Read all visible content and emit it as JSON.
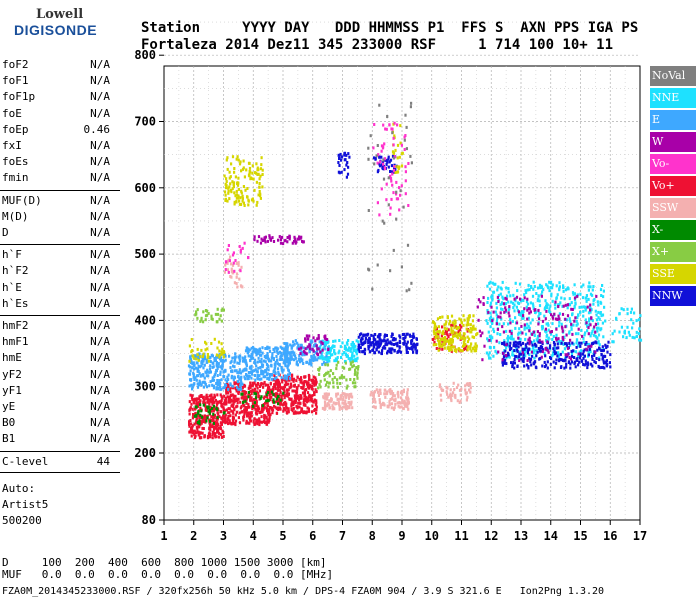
{
  "logo": {
    "line1": "Lowell",
    "line2": "DIGISONDE"
  },
  "header": {
    "row1": "Station     YYYY DAY   DDD HHMMSS P1  FFS S  AXN PPS IGA PS",
    "row2": "Fortaleza 2014 Dez11 345 233000 RSF     1 714 100 10+ 11"
  },
  "params": [
    {
      "label": "foF2",
      "value": "N/A"
    },
    {
      "label": "foF1",
      "value": "N/A"
    },
    {
      "label": "foF1p",
      "value": "N/A"
    },
    {
      "label": "foE",
      "value": "N/A"
    },
    {
      "label": "foEp",
      "value": "0.46"
    },
    {
      "label": "fxI",
      "value": "N/A"
    },
    {
      "label": "foEs",
      "value": "N/A"
    },
    {
      "label": "fmin",
      "value": "N/A"
    },
    {
      "label": "MUF(D)",
      "value": "N/A"
    },
    {
      "label": "M(D)",
      "value": "N/A"
    },
    {
      "label": "D",
      "value": "N/A"
    },
    {
      "label": "h`F",
      "value": "N/A"
    },
    {
      "label": "h`F2",
      "value": "N/A"
    },
    {
      "label": "h`E",
      "value": "N/A"
    },
    {
      "label": "h`Es",
      "value": "N/A"
    },
    {
      "label": "hmF2",
      "value": "N/A"
    },
    {
      "label": "hmF1",
      "value": "N/A"
    },
    {
      "label": "hmE",
      "value": "N/A"
    },
    {
      "label": "yF2",
      "value": "N/A"
    },
    {
      "label": "yF1",
      "value": "N/A"
    },
    {
      "label": "yE",
      "value": "N/A"
    },
    {
      "label": "B0",
      "value": "N/A"
    },
    {
      "label": "B1",
      "value": "N/A"
    },
    {
      "label": "C-level",
      "value": "44"
    }
  ],
  "auto": {
    "line1": "Auto:",
    "line2": "Artist5",
    "line3": "500200"
  },
  "legend": [
    {
      "label": "NoVal",
      "color": "#7f7f7f"
    },
    {
      "label": "NNE",
      "color": "#1ee1ff"
    },
    {
      "label": "E",
      "color": "#3ea8ff"
    },
    {
      "label": "W",
      "color": "#a800a8"
    },
    {
      "label": "Vo-",
      "color": "#ff33cc"
    },
    {
      "label": "Vo+",
      "color": "#ee1133"
    },
    {
      "label": "SSW",
      "color": "#f4b0b0"
    },
    {
      "label": "X-",
      "color": "#008a00"
    },
    {
      "label": "X+",
      "color": "#88cc44"
    },
    {
      "label": "SSE",
      "color": "#d6d600"
    },
    {
      "label": "NNW",
      "color": "#1010d8"
    }
  ],
  "footer": {
    "line1": "D     100  200  400  600  800 1000 1500 3000 [km]",
    "line2": "MUF   0.0  0.0  0.0  0.0  0.0  0.0  0.0  0.0 [MHz]",
    "filename": "FZA0M_2014345233000.RSF / 320fx256h 50 kHz 5.0 km / DPS-4 FZA0M 904 / 3.9 S 321.6 E   Ion2Png 1.3.20"
  },
  "chart_data": {
    "type": "scatter",
    "xlabel": "",
    "ylabel": "",
    "xlim": [
      1,
      17
    ],
    "ylim": [
      80,
      900
    ],
    "x_ticks": [
      1,
      2,
      3,
      4,
      5,
      6,
      7,
      8,
      9,
      10,
      11,
      12,
      13,
      14,
      15,
      16,
      17
    ],
    "y_ticks": [
      80,
      200,
      300,
      400,
      500,
      600,
      700,
      800,
      900
    ],
    "grid": true,
    "legend_position": "right",
    "series": [
      {
        "name": "Vo+",
        "clusters": [
          {
            "x": [
              1.8,
              3.0
            ],
            "y": [
              225,
              290
            ],
            "n": 300
          },
          {
            "x": [
              3.0,
              4.6
            ],
            "y": [
              245,
              310
            ],
            "n": 380
          },
          {
            "x": [
              4.6,
              6.1
            ],
            "y": [
              262,
              320
            ],
            "n": 320
          },
          {
            "x": [
              10.0,
              11.2
            ],
            "y": [
              355,
              395
            ],
            "n": 60
          }
        ]
      },
      {
        "name": "SSW",
        "clusters": [
          {
            "x": [
              6.3,
              7.3
            ],
            "y": [
              268,
              292
            ],
            "n": 90
          },
          {
            "x": [
              7.9,
              9.2
            ],
            "y": [
              268,
              298
            ],
            "n": 110
          },
          {
            "x": [
              10.2,
              11.3
            ],
            "y": [
              278,
              308
            ],
            "n": 50
          },
          {
            "x": [
              3.0,
              3.6
            ],
            "y": [
              450,
              500
            ],
            "n": 30
          }
        ]
      },
      {
        "name": "E",
        "clusters": [
          {
            "x": [
              1.8,
              3.6
            ],
            "y": [
              298,
              352
            ],
            "n": 260
          },
          {
            "x": [
              3.6,
              5.2
            ],
            "y": [
              312,
              362
            ],
            "n": 260
          },
          {
            "x": [
              5.0,
              6.5
            ],
            "y": [
              335,
              372
            ],
            "n": 160
          }
        ]
      },
      {
        "name": "NNE",
        "clusters": [
          {
            "x": [
              6.2,
              7.5
            ],
            "y": [
              340,
              372
            ],
            "n": 120
          },
          {
            "x": [
              11.8,
              15.8
            ],
            "y": [
              345,
              460
            ],
            "n": 520
          },
          {
            "x": [
              16.0,
              17.0
            ],
            "y": [
              370,
              420
            ],
            "n": 40
          }
        ]
      },
      {
        "name": "NNW",
        "clusters": [
          {
            "x": [
              7.5,
              9.5
            ],
            "y": [
              352,
              382
            ],
            "n": 200
          },
          {
            "x": [
              12.3,
              16.0
            ],
            "y": [
              330,
              370
            ],
            "n": 260
          },
          {
            "x": [
              8.0,
              8.8
            ],
            "y": [
              625,
              650
            ],
            "n": 40
          },
          {
            "x": [
              6.8,
              7.2
            ],
            "y": [
              615,
              660
            ],
            "n": 25
          }
        ]
      },
      {
        "name": "SSE",
        "clusters": [
          {
            "x": [
              3.0,
              4.3
            ],
            "y": [
              575,
              650
            ],
            "n": 130
          },
          {
            "x": [
              10.0,
              11.5
            ],
            "y": [
              355,
              410
            ],
            "n": 180
          },
          {
            "x": [
              1.8,
              3.0
            ],
            "y": [
              340,
              375
            ],
            "n": 40
          },
          {
            "x": [
              8.6,
              9.0
            ],
            "y": [
              620,
              700
            ],
            "n": 25
          }
        ]
      },
      {
        "name": "W",
        "clusters": [
          {
            "x": [
              4.0,
              5.7
            ],
            "y": [
              518,
              530
            ],
            "n": 50
          },
          {
            "x": [
              11.5,
              15.5
            ],
            "y": [
              340,
              440
            ],
            "n": 160
          },
          {
            "x": [
              5.5,
              6.5
            ],
            "y": [
              350,
              380
            ],
            "n": 40
          }
        ]
      },
      {
        "name": "X+",
        "clusters": [
          {
            "x": [
              6.1,
              7.5
            ],
            "y": [
              300,
              340
            ],
            "n": 70
          },
          {
            "x": [
              2.0,
              3.0
            ],
            "y": [
              400,
              420
            ],
            "n": 30
          }
        ]
      },
      {
        "name": "X-",
        "clusters": [
          {
            "x": [
              2.0,
              3.0
            ],
            "y": [
              245,
              275
            ],
            "n": 35
          },
          {
            "x": [
              3.5,
              5.0
            ],
            "y": [
              270,
              295
            ],
            "n": 30
          }
        ]
      },
      {
        "name": "Vo-",
        "clusters": [
          {
            "x": [
              8.0,
              9.2
            ],
            "y": [
              560,
              700
            ],
            "n": 60
          },
          {
            "x": [
              3.0,
              3.8
            ],
            "y": [
              470,
              520
            ],
            "n": 20
          }
        ]
      },
      {
        "name": "NoVal",
        "clusters": [
          {
            "x": [
              7.8,
              9.3
            ],
            "y": [
              440,
              730
            ],
            "n": 40
          }
        ]
      }
    ]
  }
}
